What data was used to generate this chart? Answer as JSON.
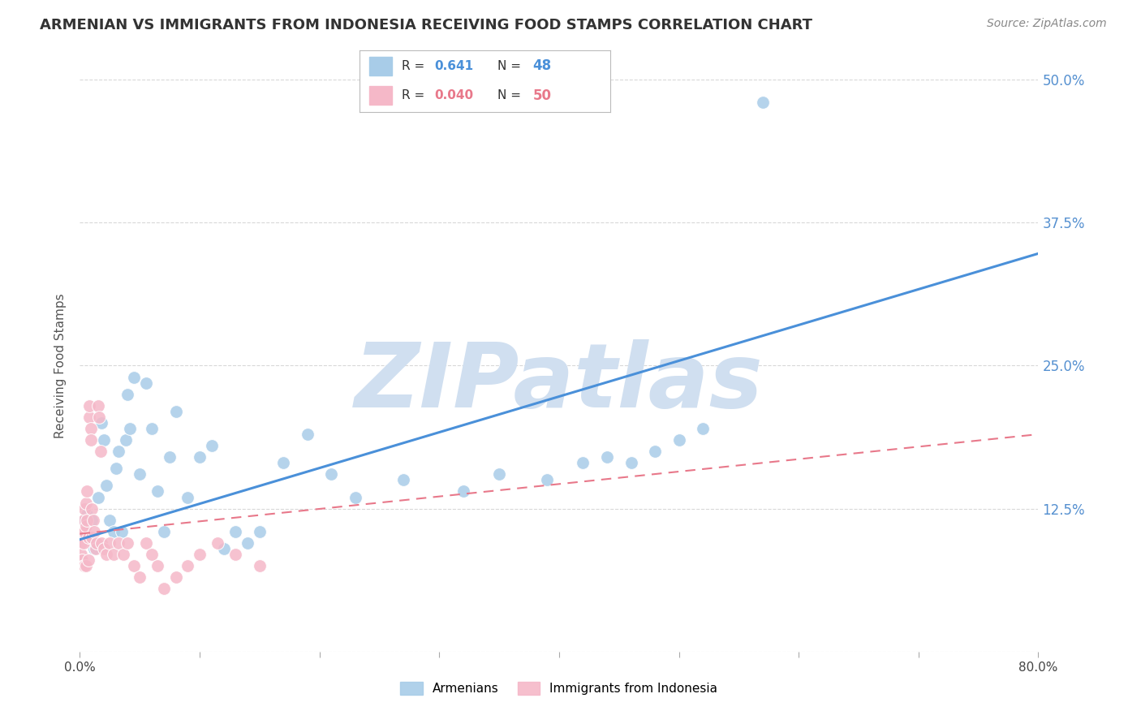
{
  "title": "ARMENIAN VS IMMIGRANTS FROM INDONESIA RECEIVING FOOD STAMPS CORRELATION CHART",
  "source": "Source: ZipAtlas.com",
  "ylabel": "Receiving Food Stamps",
  "xlabel": "",
  "xlim": [
    0,
    0.8
  ],
  "ylim": [
    0,
    0.5
  ],
  "xticks": [
    0.0,
    0.1,
    0.2,
    0.3,
    0.4,
    0.5,
    0.6,
    0.7,
    0.8
  ],
  "yticks": [
    0.0,
    0.125,
    0.25,
    0.375,
    0.5
  ],
  "blue_scatter_x": [
    0.004,
    0.006,
    0.008,
    0.01,
    0.012,
    0.015,
    0.018,
    0.02,
    0.022,
    0.025,
    0.028,
    0.03,
    0.032,
    0.035,
    0.038,
    0.04,
    0.042,
    0.045,
    0.05,
    0.055,
    0.06,
    0.065,
    0.07,
    0.075,
    0.08,
    0.09,
    0.1,
    0.11,
    0.12,
    0.13,
    0.14,
    0.15,
    0.17,
    0.19,
    0.21,
    0.23,
    0.27,
    0.32,
    0.35,
    0.39,
    0.42,
    0.44,
    0.46,
    0.48,
    0.5,
    0.52,
    0.57
  ],
  "blue_scatter_y": [
    0.115,
    0.12,
    0.1,
    0.115,
    0.09,
    0.135,
    0.2,
    0.185,
    0.145,
    0.115,
    0.105,
    0.16,
    0.175,
    0.105,
    0.185,
    0.225,
    0.195,
    0.24,
    0.155,
    0.235,
    0.195,
    0.14,
    0.105,
    0.17,
    0.21,
    0.135,
    0.17,
    0.18,
    0.09,
    0.105,
    0.095,
    0.105,
    0.165,
    0.19,
    0.155,
    0.135,
    0.15,
    0.14,
    0.155,
    0.15,
    0.165,
    0.17,
    0.165,
    0.175,
    0.185,
    0.195,
    0.48
  ],
  "pink_scatter_x": [
    0.001,
    0.001,
    0.002,
    0.002,
    0.003,
    0.003,
    0.003,
    0.004,
    0.004,
    0.004,
    0.005,
    0.005,
    0.005,
    0.006,
    0.006,
    0.007,
    0.007,
    0.008,
    0.008,
    0.009,
    0.009,
    0.01,
    0.01,
    0.011,
    0.012,
    0.013,
    0.014,
    0.015,
    0.016,
    0.017,
    0.018,
    0.02,
    0.022,
    0.025,
    0.028,
    0.032,
    0.036,
    0.04,
    0.045,
    0.05,
    0.055,
    0.06,
    0.065,
    0.07,
    0.08,
    0.09,
    0.1,
    0.115,
    0.13,
    0.15
  ],
  "pink_scatter_y": [
    0.095,
    0.085,
    0.105,
    0.08,
    0.115,
    0.095,
    0.075,
    0.125,
    0.105,
    0.075,
    0.13,
    0.11,
    0.075,
    0.14,
    0.115,
    0.1,
    0.08,
    0.205,
    0.215,
    0.195,
    0.185,
    0.125,
    0.1,
    0.115,
    0.105,
    0.09,
    0.095,
    0.215,
    0.205,
    0.175,
    0.095,
    0.09,
    0.085,
    0.095,
    0.085,
    0.095,
    0.085,
    0.095,
    0.075,
    0.065,
    0.095,
    0.085,
    0.075,
    0.055,
    0.065,
    0.075,
    0.085,
    0.095,
    0.085,
    0.075
  ],
  "blue_line_x": [
    0.0,
    0.8
  ],
  "blue_line_y": [
    0.098,
    0.348
  ],
  "pink_line_x": [
    0.0,
    0.8
  ],
  "pink_line_y": [
    0.103,
    0.19
  ],
  "scatter_size": 130,
  "blue_color": "#a8cce8",
  "blue_line_color": "#4a90d9",
  "pink_color": "#f5b8c8",
  "pink_line_color": "#e8788a",
  "background_color": "#ffffff",
  "grid_color": "#d8d8d8",
  "title_color": "#333333",
  "watermark_text": "ZIPatlas",
  "watermark_color": "#d0dff0",
  "title_fontsize": 13,
  "source_fontsize": 10,
  "right_tick_color": "#5590d0"
}
